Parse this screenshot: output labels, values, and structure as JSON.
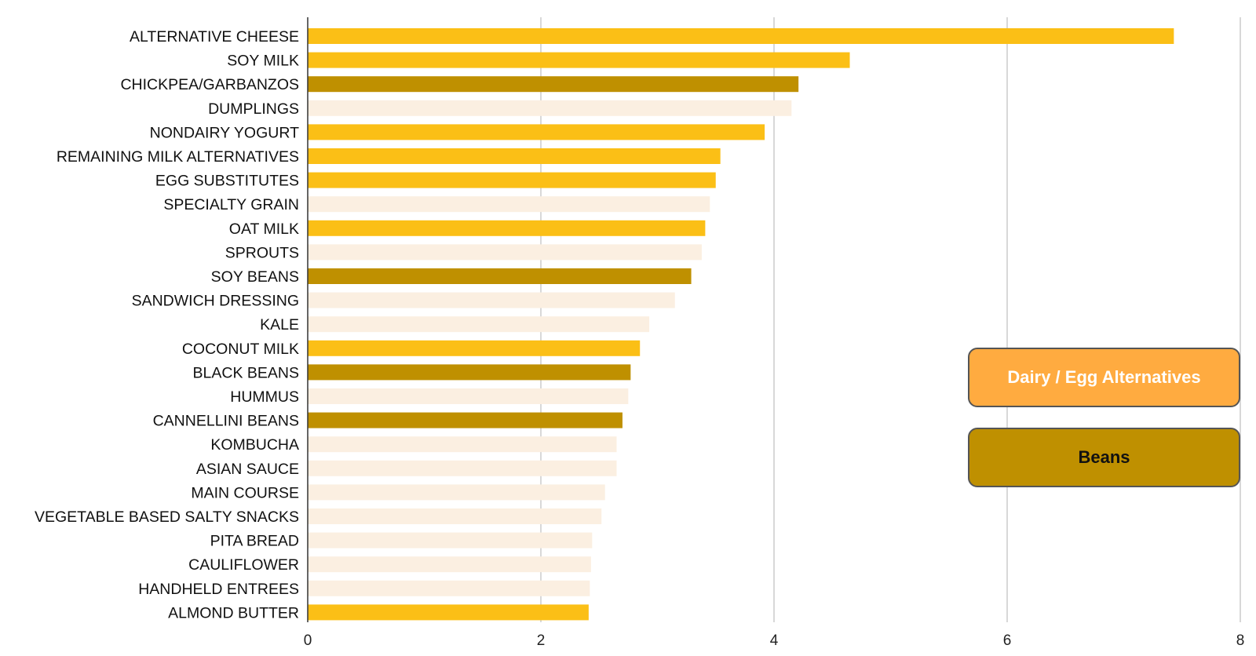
{
  "chart_data": {
    "type": "bar",
    "orientation": "horizontal",
    "title": "",
    "xlabel": "",
    "ylabel": "",
    "xlim": [
      0,
      8
    ],
    "x_ticks": [
      "0",
      "2",
      "4",
      "6",
      "8"
    ],
    "grid": true,
    "legend_position": "right",
    "categories": [
      "ALTERNATIVE CHEESE",
      "SOY MILK",
      "CHICKPEA/GARBANZOS",
      "DUMPLINGS",
      "NONDAIRY YOGURT",
      "REMAINING MILK ALTERNATIVES",
      "EGG SUBSTITUTES",
      "SPECIALTY GRAIN",
      "OAT MILK",
      "SPROUTS",
      "SOY BEANS",
      "SANDWICH DRESSING",
      "KALE",
      "COCONUT MILK",
      "BLACK BEANS",
      "HUMMUS",
      "CANNELLINI BEANS",
      "KOMBUCHA",
      "ASIAN SAUCE",
      "MAIN COURSE",
      "VEGETABLE BASED SALTY SNACKS",
      "PITA BREAD",
      "CAULIFLOWER",
      "HANDHELD ENTREES",
      "ALMOND BUTTER"
    ],
    "values": [
      7.43,
      4.65,
      4.21,
      4.15,
      3.92,
      3.54,
      3.5,
      3.45,
      3.41,
      3.38,
      3.29,
      3.15,
      2.93,
      2.85,
      2.77,
      2.75,
      2.7,
      2.65,
      2.65,
      2.55,
      2.52,
      2.44,
      2.43,
      2.42,
      2.41
    ],
    "groups": [
      "dairy",
      "dairy",
      "beans",
      "other",
      "dairy",
      "dairy",
      "dairy",
      "other",
      "dairy",
      "other",
      "beans",
      "other",
      "other",
      "dairy",
      "beans",
      "other",
      "beans",
      "other",
      "other",
      "other",
      "other",
      "other",
      "other",
      "other",
      "dairy"
    ],
    "colors": {
      "dairy": "#fbbf16",
      "beans": "#bf9000",
      "other": "#fbefe1",
      "grid": "#cccccc",
      "axis": "#333333",
      "legend_dairy_fill": "#ffab40",
      "legend_beans_fill": "#bf9000"
    },
    "legend": [
      {
        "label": "Dairy / Egg Alternatives",
        "group": "dairy"
      },
      {
        "label": "Beans",
        "group": "beans"
      }
    ]
  }
}
